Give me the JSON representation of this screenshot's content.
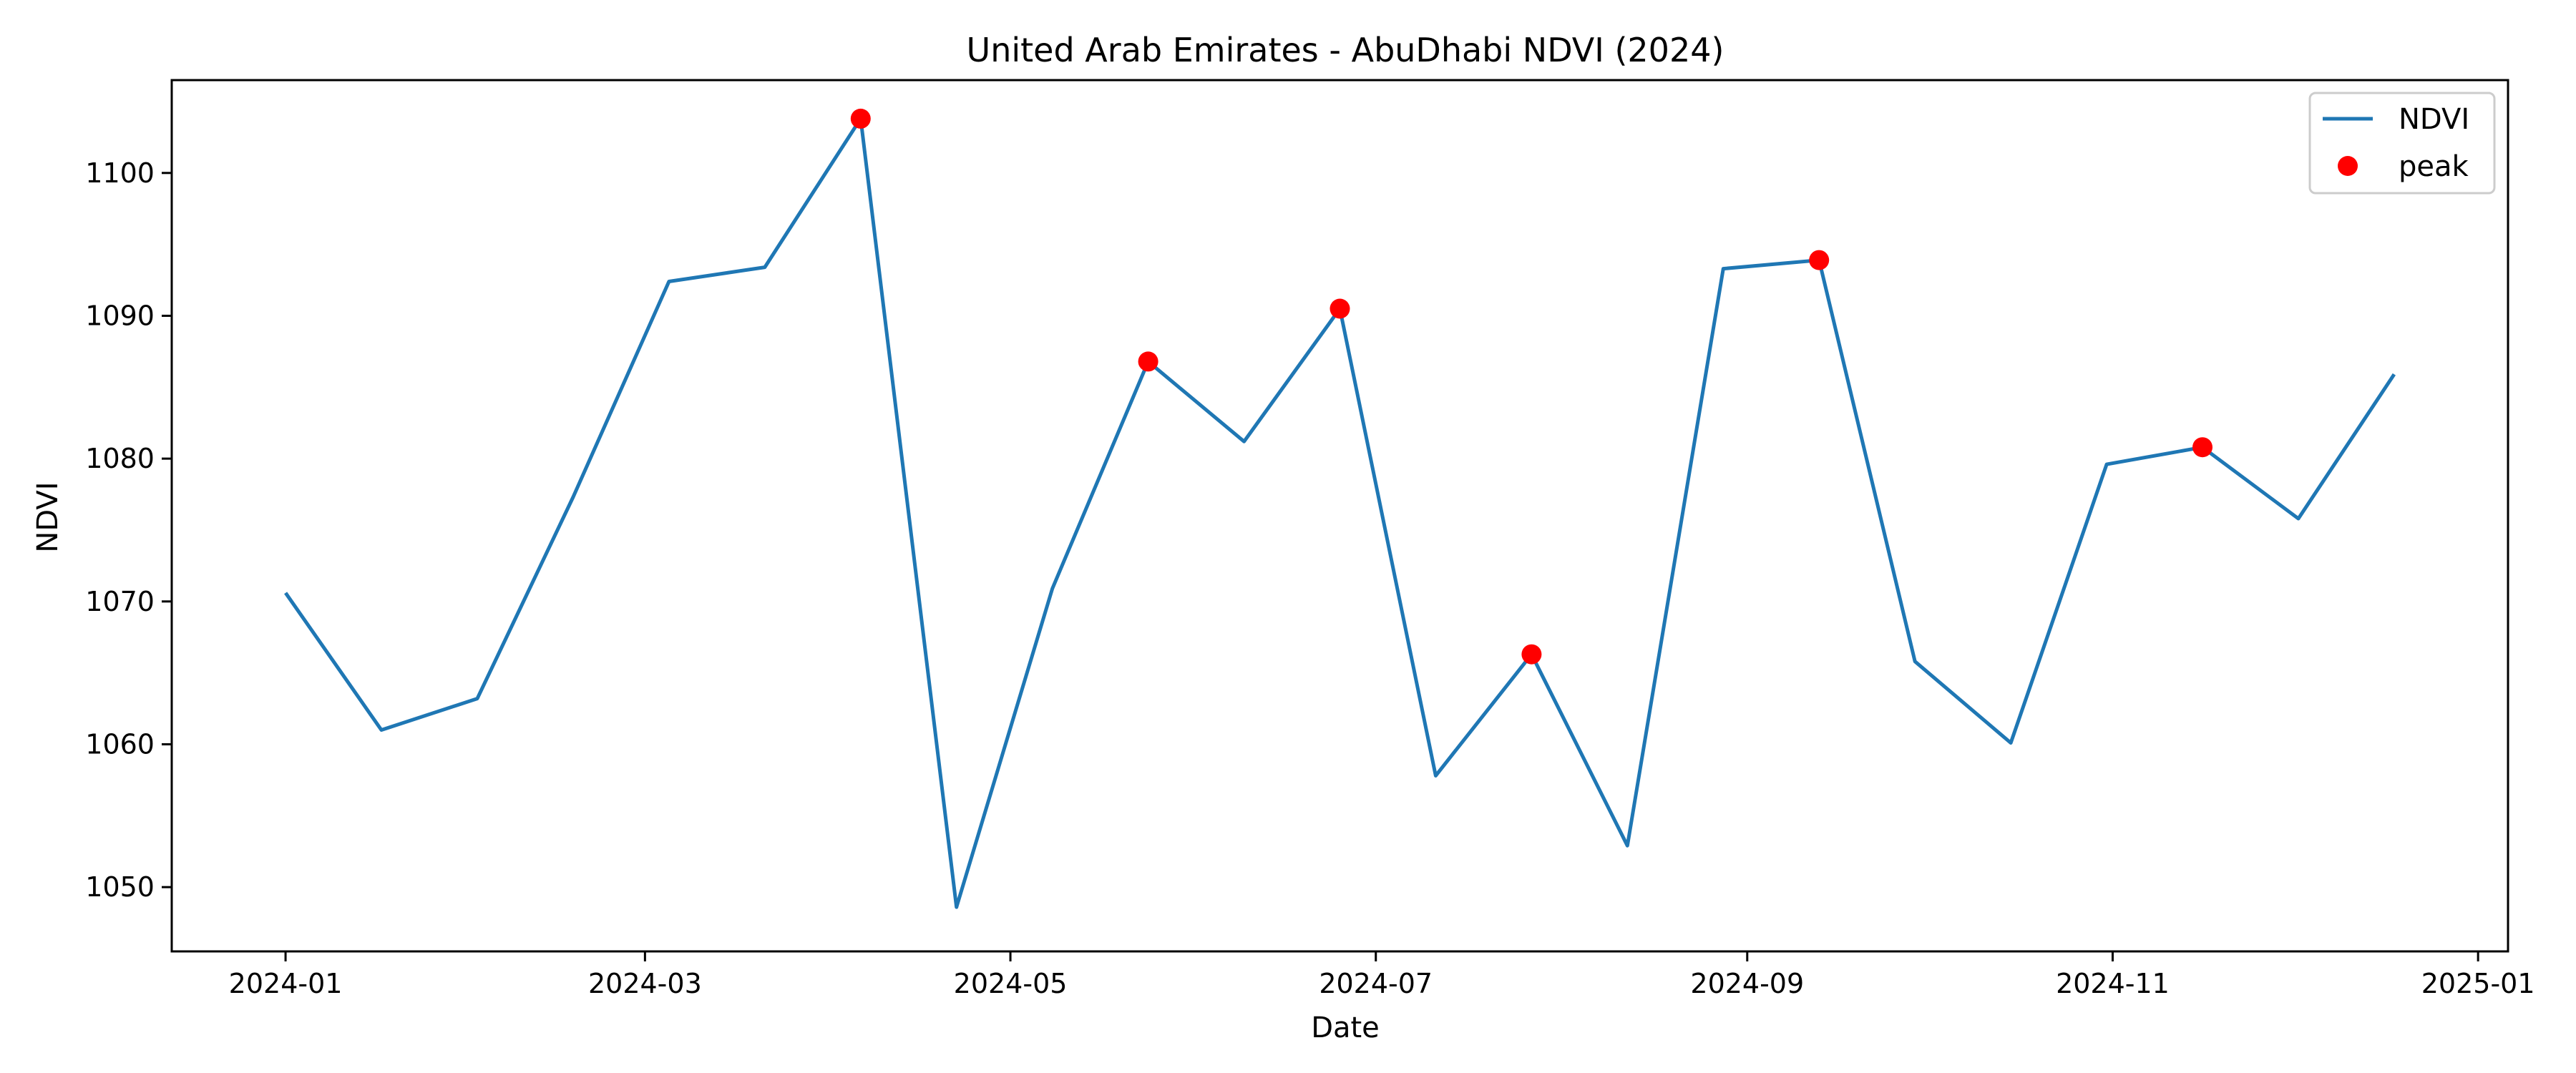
{
  "chart_data": {
    "type": "line",
    "title": "United Arab Emirates - AbuDhabi NDVI (2024)",
    "xlabel": "Date",
    "ylabel": "NDVI",
    "xlim": [
      "2023-12-13",
      "2025-01-06"
    ],
    "ylim": [
      1045.5,
      1106.5
    ],
    "x_ticks": [
      "2024-01",
      "2024-03",
      "2024-05",
      "2024-07",
      "2024-09",
      "2024-11",
      "2025-01"
    ],
    "y_ticks": [
      1050,
      1060,
      1070,
      1080,
      1090,
      1100
    ],
    "grid": false,
    "legend_position": "top-right",
    "colors": {
      "series": "#1f77b4",
      "peak": "#ff0000"
    },
    "series": [
      {
        "name": "NDVI",
        "x": [
          "2024-01-01",
          "2024-01-17",
          "2024-02-02",
          "2024-02-18",
          "2024-03-05",
          "2024-03-21",
          "2024-04-06",
          "2024-04-22",
          "2024-05-08",
          "2024-05-24",
          "2024-06-09",
          "2024-06-25",
          "2024-07-11",
          "2024-07-27",
          "2024-08-12",
          "2024-08-28",
          "2024-09-13",
          "2024-09-29",
          "2024-10-15",
          "2024-10-31",
          "2024-11-16",
          "2024-12-02",
          "2024-12-18"
        ],
        "y": [
          1070.6,
          1061.0,
          1063.2,
          1077.3,
          1092.4,
          1093.4,
          1103.8,
          1048.6,
          1070.9,
          1086.8,
          1081.2,
          1090.5,
          1057.8,
          1066.3,
          1052.9,
          1093.3,
          1093.9,
          1065.8,
          1060.1,
          1079.6,
          1080.8,
          1075.8,
          1085.9
        ]
      },
      {
        "name": "peak",
        "x": [
          "2024-04-06",
          "2024-05-24",
          "2024-06-25",
          "2024-07-27",
          "2024-09-13",
          "2024-11-16"
        ],
        "y": [
          1103.8,
          1086.8,
          1090.5,
          1066.3,
          1093.9,
          1080.8
        ]
      }
    ]
  }
}
